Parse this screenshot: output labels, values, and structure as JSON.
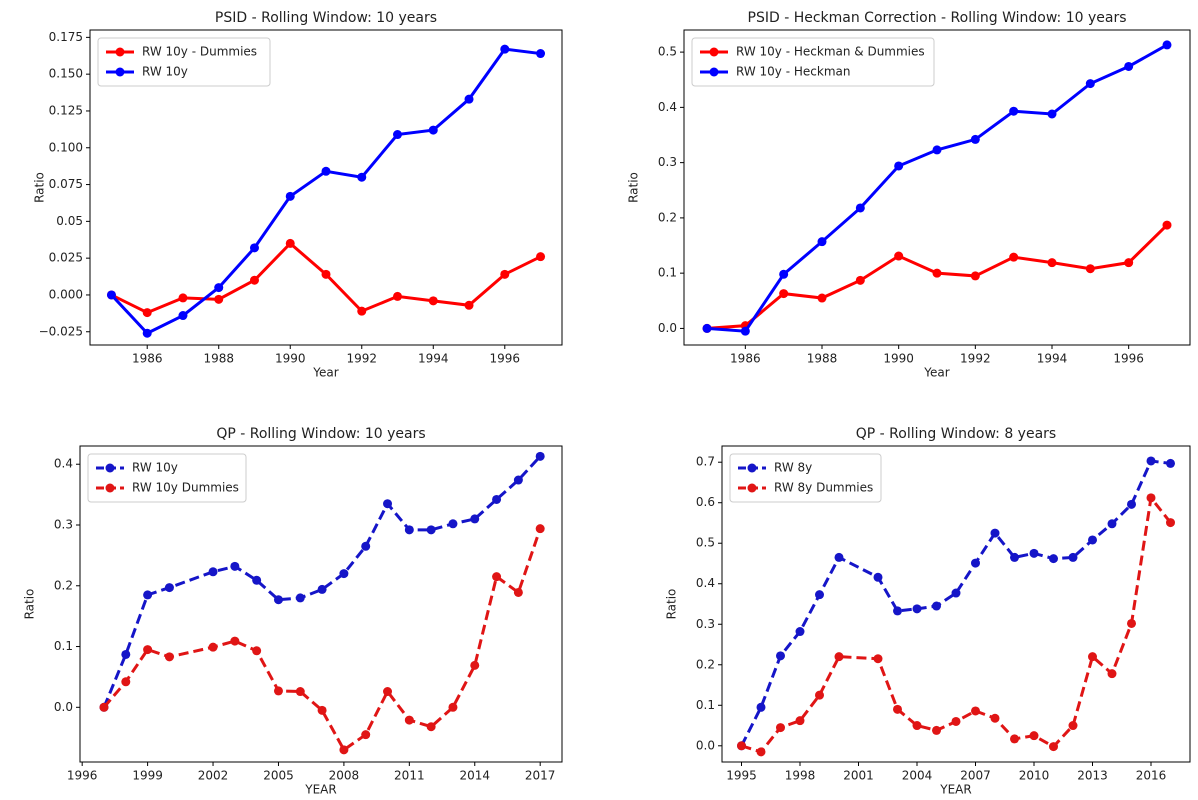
{
  "chart_data": [
    {
      "type": "line",
      "title": "PSID - Rolling Window: 10 years",
      "xlabel": "Year",
      "ylabel": "Ratio",
      "xlim": [
        1984.4,
        1997.6
      ],
      "xticks": [
        1986,
        1988,
        1990,
        1992,
        1994,
        1996
      ],
      "ylim": [
        -0.034,
        0.18
      ],
      "yticks": [
        {
          "value": -0.025,
          "label": "−0.025"
        },
        {
          "value": 0,
          "label": "0.000"
        },
        0.025,
        0.05,
        0.075,
        {
          "value": 0.1,
          "label": "0.100"
        },
        0.125,
        {
          "value": 0.15,
          "label": "0.150"
        },
        0.175
      ],
      "legend": "upper left",
      "series": [
        {
          "name": "RW 10y - Dummies",
          "color": "#ff0000",
          "dashed": false,
          "x": [
            1985,
            1986,
            1987,
            1988,
            1989,
            1990,
            1991,
            1992,
            1993,
            1994,
            1995,
            1996,
            1997
          ],
          "values": [
            0,
            -0.012,
            -0.002,
            -0.003,
            0.01,
            0.035,
            0.014,
            -0.011,
            -0.001,
            -0.004,
            -0.007,
            0.014,
            0.026
          ]
        },
        {
          "name": "RW 10y",
          "color": "#0000ff",
          "dashed": false,
          "x": [
            1985,
            1986,
            1987,
            1988,
            1989,
            1990,
            1991,
            1992,
            1993,
            1994,
            1995,
            1996,
            1997
          ],
          "values": [
            0,
            -0.026,
            -0.014,
            0.005,
            0.032,
            0.067,
            0.084,
            0.08,
            0.109,
            0.112,
            0.133,
            0.167,
            0.164
          ]
        }
      ]
    },
    {
      "type": "line",
      "title": "PSID - Heckman Correction - Rolling Window: 10 years",
      "xlabel": "Year",
      "ylabel": "Ratio",
      "xlim": [
        1984.4,
        1997.6
      ],
      "xticks": [
        1986,
        1988,
        1990,
        1992,
        1994,
        1996
      ],
      "ylim": [
        -0.03,
        0.54
      ],
      "yticks": [
        {
          "value": 0,
          "label": "0.0"
        },
        0.1,
        0.2,
        0.3,
        0.4,
        0.5
      ],
      "legend": "upper left",
      "series": [
        {
          "name": "RW 10y - Heckman & Dummies",
          "color": "#ff0000",
          "dashed": false,
          "x": [
            1985,
            1986,
            1987,
            1988,
            1989,
            1990,
            1991,
            1992,
            1993,
            1994,
            1995,
            1996,
            1997
          ],
          "values": [
            0,
            0.005,
            0.063,
            0.055,
            0.087,
            0.131,
            0.1,
            0.095,
            0.129,
            0.119,
            0.108,
            0.119,
            0.187
          ]
        },
        {
          "name": "RW 10y - Heckman",
          "color": "#0000ff",
          "dashed": false,
          "x": [
            1985,
            1986,
            1987,
            1988,
            1989,
            1990,
            1991,
            1992,
            1993,
            1994,
            1995,
            1996,
            1997
          ],
          "values": [
            0,
            -0.005,
            0.098,
            0.157,
            0.218,
            0.294,
            0.323,
            0.342,
            0.393,
            0.388,
            0.443,
            0.474,
            0.513
          ]
        }
      ]
    },
    {
      "type": "line",
      "title": "QP - Rolling Window: 10 years",
      "xlabel": "YEAR",
      "ylabel": "Ratio",
      "xlim": [
        1995.9,
        2018
      ],
      "xticks": [
        1996,
        1999,
        2002,
        2005,
        2008,
        2011,
        2014,
        2017
      ],
      "ylim": [
        -0.09,
        0.43
      ],
      "yticks": [
        {
          "value": 0,
          "label": "0.0"
        },
        0.1,
        0.2,
        0.3,
        0.4
      ],
      "legend": "upper left",
      "series": [
        {
          "name": "RW 10y",
          "color": "#1515c8",
          "dashed": true,
          "x": [
            1997,
            1998,
            1999,
            2000,
            2002,
            2003,
            2004,
            2005,
            2006,
            2007,
            2008,
            2009,
            2010,
            2011,
            2012,
            2013,
            2014,
            2015,
            2016,
            2017
          ],
          "values": [
            0,
            0.087,
            0.185,
            0.197,
            0.223,
            0.232,
            0.209,
            0.177,
            0.18,
            0.194,
            0.22,
            0.265,
            0.335,
            0.292,
            0.292,
            0.302,
            0.31,
            0.342,
            0.374,
            0.413
          ]
        },
        {
          "name": "RW 10y Dummies",
          "color": "#e01515",
          "dashed": true,
          "x": [
            1997,
            1998,
            1999,
            2000,
            2002,
            2003,
            2004,
            2005,
            2006,
            2007,
            2008,
            2009,
            2010,
            2011,
            2012,
            2013,
            2014,
            2015,
            2016,
            2017
          ],
          "values": [
            0,
            0.042,
            0.095,
            0.083,
            0.099,
            0.109,
            0.093,
            0.027,
            0.026,
            -0.005,
            -0.07,
            -0.045,
            0.026,
            -0.021,
            -0.032,
            0,
            0.069,
            0.215,
            0.189,
            0.294
          ]
        }
      ]
    },
    {
      "type": "line",
      "title": "QP - Rolling Window: 8 years",
      "xlabel": "YEAR",
      "ylabel": "Ratio",
      "xlim": [
        1994,
        2018
      ],
      "xticks": [
        1995,
        1998,
        2001,
        2004,
        2007,
        2010,
        2013,
        2016
      ],
      "ylim": [
        -0.04,
        0.74
      ],
      "yticks": [
        {
          "value": 0,
          "label": "0.0"
        },
        0.1,
        0.2,
        0.3,
        0.4,
        0.5,
        0.6,
        0.7
      ],
      "legend": "upper left",
      "series": [
        {
          "name": "RW 8y",
          "color": "#1515c8",
          "dashed": true,
          "x": [
            1995,
            1996,
            1997,
            1998,
            1999,
            2000,
            2002,
            2003,
            2004,
            2005,
            2006,
            2007,
            2008,
            2009,
            2010,
            2011,
            2012,
            2013,
            2014,
            2015,
            2016,
            2017
          ],
          "values": [
            0,
            0.095,
            0.222,
            0.282,
            0.373,
            0.465,
            0.416,
            0.333,
            0.338,
            0.345,
            0.377,
            0.451,
            0.525,
            0.465,
            0.475,
            0.462,
            0.465,
            0.508,
            0.548,
            0.596,
            0.703,
            0.697
          ]
        },
        {
          "name": "RW 8y Dummies",
          "color": "#e01515",
          "dashed": true,
          "x": [
            1995,
            1996,
            1997,
            1998,
            1999,
            2000,
            2002,
            2003,
            2004,
            2005,
            2006,
            2007,
            2008,
            2009,
            2010,
            2011,
            2012,
            2013,
            2014,
            2015,
            2016,
            2017
          ],
          "values": [
            0,
            -0.015,
            0.045,
            0.062,
            0.125,
            0.22,
            0.215,
            0.09,
            0.05,
            0.038,
            0.06,
            0.086,
            0.068,
            0.017,
            0.025,
            -0.002,
            0.05,
            0.22,
            0.178,
            0.302,
            0.612,
            0.551
          ]
        }
      ]
    }
  ]
}
